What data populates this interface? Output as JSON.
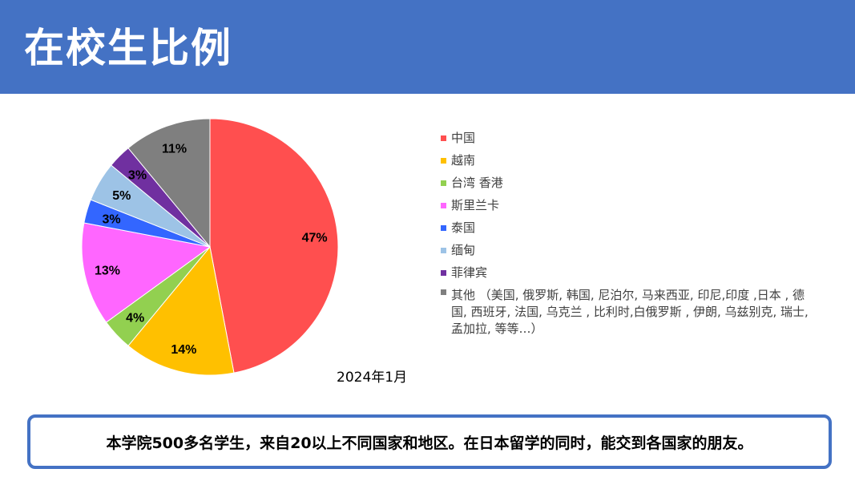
{
  "header": {
    "title": "在校生比例"
  },
  "chart_data": {
    "type": "pie",
    "categories": [
      "中国",
      "越南",
      "台湾  香港",
      "斯里兰卡",
      "泰国",
      "缅甸",
      "菲律宾",
      "其他 （美国, 俄罗斯, 韩国, 尼泊尔, 马来西亚, 印尼,印度 ,日本 , 德国, 西班牙, 法国, 乌克兰 , 比利时,白俄罗斯 , 伊朗, 乌兹别克, 瑞士, 孟加拉, 等等…）"
    ],
    "values": [
      47,
      14,
      4,
      13,
      3,
      5,
      3,
      11
    ],
    "labels": [
      "47%",
      "14%",
      "4%",
      "13%",
      "3%",
      "5%",
      "3%",
      "11%"
    ],
    "colors": [
      "#ff4f4f",
      "#ffc000",
      "#92d050",
      "#ff66ff",
      "#3366ff",
      "#9dc3e6",
      "#7030a0",
      "#7f7f7f"
    ],
    "start_angle": "12 o'clock",
    "direction": "clockwise",
    "legend_position": "right"
  },
  "date_label": "2024年1月",
  "note": "本学院500多名学生，来自20以上不同国家和地区。在日本留学的同时，能交到各国家的朋友。"
}
